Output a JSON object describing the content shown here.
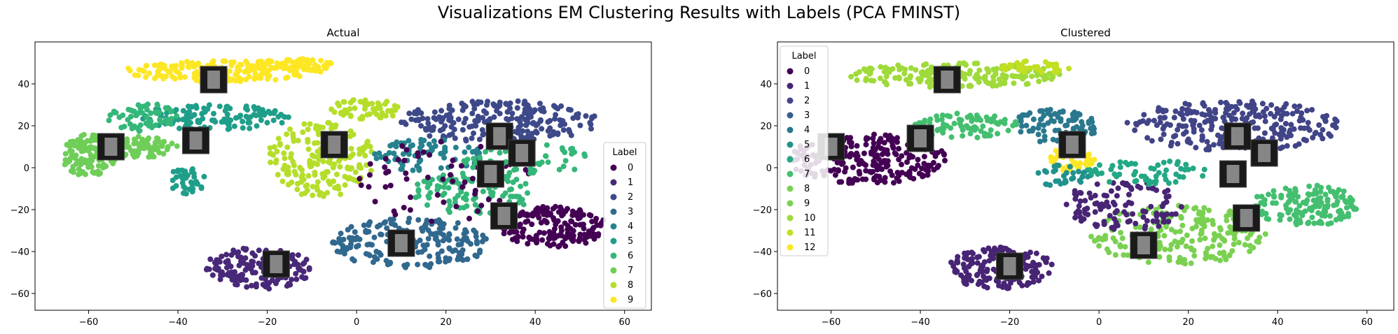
{
  "figure": {
    "suptitle": "Visualizations EM Clustering Results with Labels (PCA FMINST)"
  },
  "chart_data": [
    {
      "type": "scatter",
      "title": "Actual",
      "xlabel": "",
      "ylabel": "",
      "xlim": [
        -72,
        66
      ],
      "ylim": [
        -68,
        60
      ],
      "xticks": [
        -60,
        -40,
        -20,
        0,
        20,
        40,
        60
      ],
      "yticks": [
        -60,
        -40,
        -20,
        0,
        20,
        40
      ],
      "grid": false,
      "legend": {
        "title": "Label",
        "placement": "center-right",
        "entries": [
          "0",
          "1",
          "2",
          "3",
          "4",
          "5",
          "6",
          "7",
          "8",
          "9"
        ]
      },
      "colors": [
        "#440154",
        "#482878",
        "#3e4989",
        "#31688e",
        "#26828e",
        "#1f9e89",
        "#35b779",
        "#6ece58",
        "#b5de2b",
        "#fde725"
      ],
      "clusters": [
        {
          "label": 9,
          "cx": -30,
          "cy": 46,
          "rx": 22,
          "ry": 5,
          "n": 170,
          "seed": 11
        },
        {
          "label": 9,
          "cx": -14,
          "cy": 49,
          "rx": 10,
          "ry": 3,
          "n": 70,
          "seed": 12
        },
        {
          "label": 5,
          "cx": -32,
          "cy": 24,
          "rx": 17,
          "ry": 6,
          "n": 120,
          "seed": 13
        },
        {
          "label": 7,
          "cx": -60,
          "cy": 6,
          "rx": 6,
          "ry": 10,
          "n": 120,
          "seed": 14
        },
        {
          "label": 7,
          "cx": -48,
          "cy": 10,
          "rx": 8,
          "ry": 5,
          "n": 70,
          "seed": 15
        },
        {
          "label": 6,
          "cx": -48,
          "cy": 24,
          "rx": 8,
          "ry": 7,
          "n": 60,
          "seed": 16
        },
        {
          "label": 5,
          "cx": -38,
          "cy": -6,
          "rx": 4,
          "ry": 7,
          "n": 40,
          "seed": 17
        },
        {
          "label": 8,
          "cx": -8,
          "cy": 4,
          "rx": 12,
          "ry": 18,
          "n": 170,
          "seed": 18
        },
        {
          "label": 8,
          "cx": 2,
          "cy": 28,
          "rx": 8,
          "ry": 5,
          "n": 60,
          "seed": 19
        },
        {
          "label": 1,
          "cx": -22,
          "cy": -48,
          "rx": 12,
          "ry": 10,
          "n": 170,
          "seed": 20
        },
        {
          "label": 3,
          "cx": 12,
          "cy": -36,
          "rx": 18,
          "ry": 12,
          "n": 190,
          "seed": 21
        },
        {
          "label": 2,
          "cx": 32,
          "cy": 22,
          "rx": 22,
          "ry": 10,
          "n": 230,
          "seed": 22
        },
        {
          "label": 0,
          "cx": 44,
          "cy": -28,
          "rx": 12,
          "ry": 10,
          "n": 170,
          "seed": 23
        },
        {
          "label": 6,
          "cx": 26,
          "cy": -12,
          "rx": 14,
          "ry": 10,
          "n": 110,
          "seed": 24
        },
        {
          "label": 4,
          "cx": 16,
          "cy": 6,
          "rx": 12,
          "ry": 8,
          "n": 80,
          "seed": 25
        },
        {
          "label": 0,
          "cx": 20,
          "cy": -6,
          "rx": 20,
          "ry": 20,
          "n": 60,
          "seed": 26
        },
        {
          "label": 6,
          "cx": 38,
          "cy": 4,
          "rx": 14,
          "ry": 8,
          "n": 60,
          "seed": 27
        }
      ],
      "thumbnails": [
        [
          -32,
          42
        ],
        [
          -55,
          10
        ],
        [
          -36,
          13
        ],
        [
          -5,
          11
        ],
        [
          32,
          15
        ],
        [
          37,
          7
        ],
        [
          30,
          -3
        ],
        [
          33,
          -23
        ],
        [
          10,
          -36
        ],
        [
          -18,
          -46
        ]
      ]
    },
    {
      "type": "scatter",
      "title": "Clustered",
      "xlabel": "",
      "ylabel": "",
      "xlim": [
        -72,
        66
      ],
      "ylim": [
        -68,
        60
      ],
      "xticks": [
        -60,
        -40,
        -20,
        0,
        20,
        40,
        60
      ],
      "yticks": [
        -60,
        -40,
        -20,
        0,
        20,
        40
      ],
      "grid": false,
      "legend": {
        "title": "Label",
        "placement": "upper-left",
        "entries": [
          "0",
          "1",
          "2",
          "3",
          "4",
          "5",
          "6",
          "7",
          "8",
          "9",
          "10",
          "11",
          "12"
        ]
      },
      "colors": [
        "#440154",
        "#482475",
        "#414487",
        "#355f8d",
        "#2a788e",
        "#21918c",
        "#22a884",
        "#44bf70",
        "#7ad151",
        "#7ad151",
        "#9fda3a",
        "#c2df23",
        "#fde725"
      ],
      "clusters": [
        {
          "label": 10,
          "cx": -32,
          "cy": 44,
          "rx": 24,
          "ry": 6,
          "n": 190,
          "seed": 31
        },
        {
          "label": 11,
          "cx": -14,
          "cy": 48,
          "rx": 8,
          "ry": 3,
          "n": 40,
          "seed": 32
        },
        {
          "label": 0,
          "cx": -52,
          "cy": 4,
          "rx": 18,
          "ry": 12,
          "n": 240,
          "seed": 33
        },
        {
          "label": 7,
          "cx": -30,
          "cy": 20,
          "rx": 12,
          "ry": 6,
          "n": 80,
          "seed": 34
        },
        {
          "label": 4,
          "cx": -10,
          "cy": 20,
          "rx": 10,
          "ry": 8,
          "n": 90,
          "seed": 35
        },
        {
          "label": 12,
          "cx": -6,
          "cy": 4,
          "rx": 5,
          "ry": 6,
          "n": 50,
          "seed": 36
        },
        {
          "label": 1,
          "cx": -22,
          "cy": -48,
          "rx": 12,
          "ry": 10,
          "n": 170,
          "seed": 37
        },
        {
          "label": 2,
          "cx": 30,
          "cy": 20,
          "rx": 24,
          "ry": 12,
          "n": 250,
          "seed": 38
        },
        {
          "label": 7,
          "cx": 46,
          "cy": -18,
          "rx": 12,
          "ry": 10,
          "n": 150,
          "seed": 39
        },
        {
          "label": 8,
          "cx": 18,
          "cy": -32,
          "rx": 20,
          "ry": 14,
          "n": 200,
          "seed": 40
        },
        {
          "label": 1,
          "cx": 6,
          "cy": -18,
          "rx": 14,
          "ry": 12,
          "n": 110,
          "seed": 41
        },
        {
          "label": 6,
          "cx": 10,
          "cy": -2,
          "rx": 14,
          "ry": 6,
          "n": 60,
          "seed": 42
        },
        {
          "label": 5,
          "cx": -8,
          "cy": -4,
          "rx": 6,
          "ry": 6,
          "n": 30,
          "seed": 43
        }
      ],
      "thumbnails": [
        [
          -34,
          42
        ],
        [
          -60,
          10
        ],
        [
          -40,
          14
        ],
        [
          -6,
          11
        ],
        [
          31,
          15
        ],
        [
          37,
          7
        ],
        [
          30,
          -3
        ],
        [
          33,
          -24
        ],
        [
          10,
          -37
        ],
        [
          -20,
          -47
        ]
      ]
    }
  ]
}
